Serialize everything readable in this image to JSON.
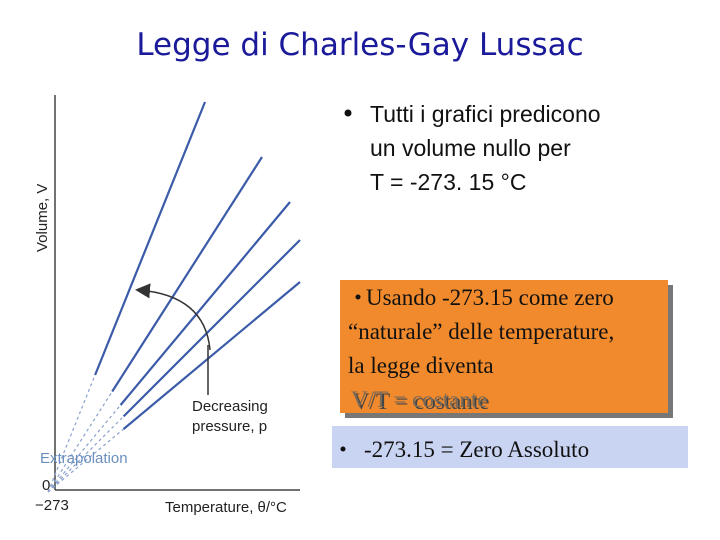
{
  "title": "Legge di Charles-Gay Lussac",
  "diagram": {
    "y_axis_label": "Volume, V",
    "x_axis_label": "Temperature, θ/°C",
    "origin_label": "0",
    "zero_label": "−273",
    "extrapolation_label": "Extrapolation",
    "pressure_label": [
      "Decreasing",
      "pressure, p"
    ]
  },
  "bullet": {
    "lines": [
      "Tutti i grafici predicono",
      "un volume nullo per",
      "T =  -273. 15 °C"
    ]
  },
  "highlight_box": {
    "lines": [
      "Usando -273.15 come zero",
      "“naturale” delle temperature,",
      "la legge diventa",
      "V/T = costante"
    ]
  },
  "result_box": {
    "text": "-273.15 = Zero Assoluto"
  }
}
